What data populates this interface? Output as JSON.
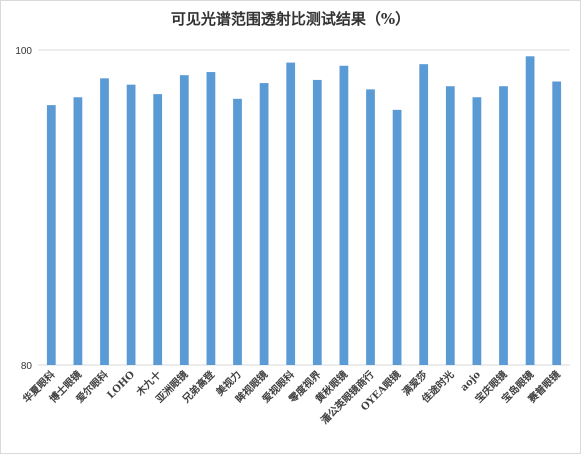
{
  "chart_data": {
    "type": "bar",
    "title": "可见光谱范围透射比测试结果（%）",
    "xlabel": "",
    "ylabel": "",
    "ylim": [
      80,
      100
    ],
    "yticks": [
      80,
      100
    ],
    "grid": true,
    "bar_color": "#5b9bd5",
    "categories": [
      "华夏眼科",
      "博士眼镜",
      "爱尔眼科",
      "LOHO",
      "木九十",
      "亚洲眼镜",
      "兄弟高登",
      "美视力",
      "眸视眼镜",
      "爱视眼科",
      "零度视界",
      "黄秋眼镜",
      "潘公英眼镜商行",
      "OYEA眼镜",
      "满爱莎",
      "佳途时光",
      "aojo",
      "宝庆眼镜",
      "宝岛眼镜",
      "赛普眼镜"
    ],
    "values": [
      96.5,
      97.0,
      98.2,
      97.8,
      97.2,
      98.4,
      98.6,
      96.9,
      97.9,
      99.2,
      98.1,
      99.0,
      97.5,
      96.2,
      99.1,
      97.7,
      97.0,
      97.7,
      99.6,
      98.0
    ]
  }
}
